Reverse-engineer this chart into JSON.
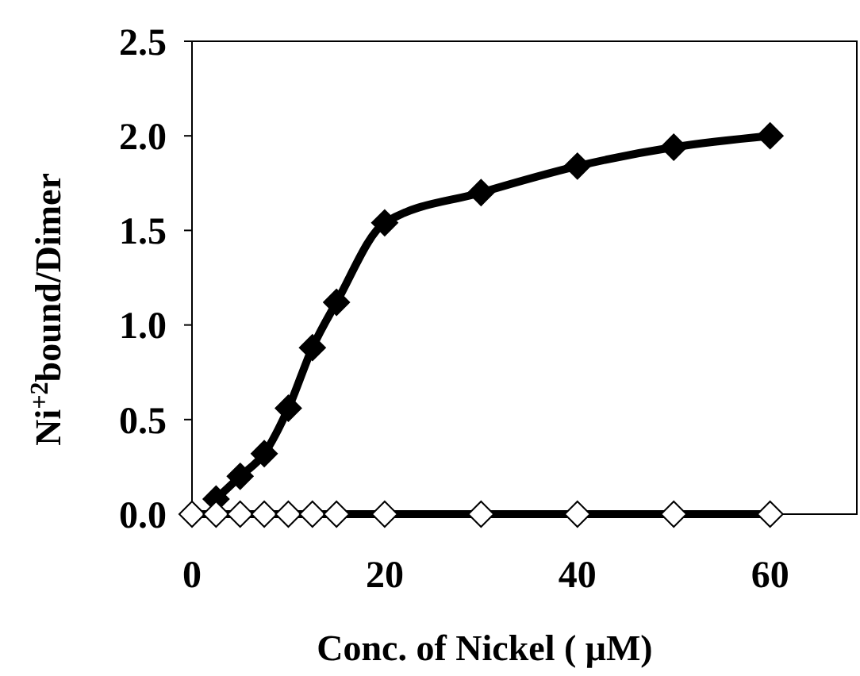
{
  "chart_data": {
    "type": "line",
    "xlabel": "Conc. of Nickel ( μM)",
    "ylabel": "Ni$^{+2}$bound/Dimer",
    "x": [
      2.5,
      5,
      7.5,
      10,
      12.5,
      15,
      20,
      30,
      40,
      50,
      60
    ],
    "series": [
      {
        "color": "#000000",
        "values": [
          0.08,
          0.2,
          0.32,
          0.56,
          0.88,
          1.12,
          1.54,
          1.7,
          1.84,
          1.94,
          2.0
        ]
      },
      {
        "color": "#ffffff",
        "x": [
          0,
          2.5,
          5,
          7.5,
          10,
          12.5,
          15,
          20,
          30,
          40,
          50,
          60
        ],
        "values": [
          0,
          0,
          0,
          0,
          0,
          0,
          0,
          0,
          0,
          0,
          0,
          0
        ]
      }
    ],
    "xlim": [
      0,
      69
    ],
    "xticks": [
      0,
      20,
      40,
      60
    ],
    "ylim": [
      0,
      2.5
    ],
    "yticks": [
      {
        "value": 0,
        "label": "0.0"
      },
      {
        "value": 0.5,
        "label": "0.5"
      },
      {
        "value": 1,
        "label": "1.0"
      },
      {
        "value": 1.5,
        "label": "1.5"
      },
      {
        "value": 2,
        "label": "2.0"
      },
      {
        "value": 2.5,
        "label": "2.5"
      }
    ],
    "grid": false,
    "marker": "diamond",
    "line_style": "solid"
  }
}
